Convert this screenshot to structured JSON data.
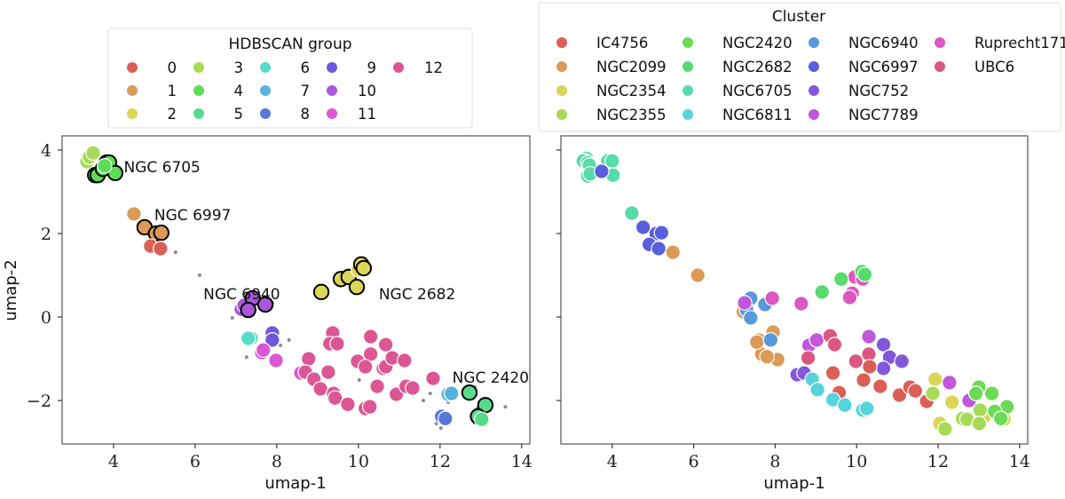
{
  "chart_data": [
    {
      "type": "scatter",
      "title": "",
      "xlabel": "umap-1",
      "ylabel": "umap-2",
      "xlim": [
        2.74,
        14.2
      ],
      "ylim": [
        -3.04,
        4.34
      ],
      "xticks": [
        4,
        6,
        8,
        10,
        12,
        14
      ],
      "yticks": [
        -2,
        0,
        2,
        4
      ],
      "ytick_labels": [
        "−2",
        "0",
        "2",
        "4"
      ],
      "grid": false,
      "legend": {
        "title": "HDBSCAN group",
        "placement": "above",
        "columns": 5,
        "entries": [
          {
            "label": "0",
            "color": "#db5f57"
          },
          {
            "label": "1",
            "color": "#db9a57"
          },
          {
            "label": "2",
            "color": "#dbd657"
          },
          {
            "label": "3",
            "color": "#a7db57"
          },
          {
            "label": "4",
            "color": "#5fdb57"
          },
          {
            "label": "5",
            "color": "#57db8a"
          },
          {
            "label": "6",
            "color": "#57dbc6"
          },
          {
            "label": "7",
            "color": "#57b3db"
          },
          {
            "label": "8",
            "color": "#5777db"
          },
          {
            "label": "9",
            "color": "#6e57db"
          },
          {
            "label": "10",
            "color": "#aa57db"
          },
          {
            "label": "11",
            "color": "#db57d4"
          },
          {
            "label": "12",
            "color": "#db5794"
          }
        ]
      },
      "annotations": [
        {
          "text": "NGC 6705",
          "x": 4.25,
          "y": 3.6
        },
        {
          "text": "NGC 6997",
          "x": 5.0,
          "y": 2.45
        },
        {
          "text": "NGC 6940",
          "x": 6.2,
          "y": 0.55
        },
        {
          "text": "NGC 2682",
          "x": 10.5,
          "y": 0.55
        },
        {
          "text": "NGC 2420",
          "x": 12.3,
          "y": -1.45
        }
      ],
      "noise_points": [
        [
          7.89,
          0.34
        ],
        [
          9.09,
          0.47
        ],
        [
          9.17,
          0.57
        ],
        [
          7.37,
          0.43
        ],
        [
          6.91,
          -0.02
        ],
        [
          7.26,
          -0.96
        ],
        [
          8.09,
          -0.68
        ],
        [
          8.3,
          -0.55
        ],
        [
          10.02,
          -1.51
        ],
        [
          11.59,
          -2.0
        ],
        [
          11.76,
          -1.83
        ],
        [
          12.2,
          -2.04
        ],
        [
          11.91,
          -2.55
        ],
        [
          12.02,
          -2.66
        ],
        [
          12.85,
          -1.68
        ],
        [
          12.91,
          -2.19
        ],
        [
          12.85,
          -2.53
        ],
        [
          13.02,
          -2.36
        ],
        [
          13.22,
          -2.23
        ],
        [
          5.52,
          1.55
        ],
        [
          6.11,
          1.0
        ],
        [
          3.46,
          3.96
        ],
        [
          13.6,
          -2.15
        ]
      ],
      "points": [
        [
          3.35,
          3.72,
          3
        ],
        [
          3.41,
          3.83,
          3
        ],
        [
          3.5,
          3.93,
          3
        ],
        [
          3.55,
          3.4,
          4,
          1
        ],
        [
          3.61,
          3.4,
          4,
          1
        ],
        [
          3.74,
          3.55,
          4,
          1
        ],
        [
          3.83,
          3.7,
          4,
          1
        ],
        [
          3.89,
          3.7,
          4,
          1
        ],
        [
          4.04,
          3.45,
          4,
          1
        ],
        [
          3.78,
          3.62,
          4,
          0
        ],
        [
          4.5,
          2.47,
          1
        ],
        [
          4.76,
          2.15,
          1,
          1
        ],
        [
          5.04,
          2.0,
          1,
          1
        ],
        [
          5.17,
          2.02,
          1,
          1
        ],
        [
          4.91,
          1.7,
          0
        ],
        [
          5.15,
          1.64,
          0
        ],
        [
          7.13,
          0.19,
          10
        ],
        [
          7.2,
          0.28,
          10
        ],
        [
          7.41,
          0.45,
          10,
          1
        ],
        [
          7.3,
          0.17,
          10,
          1
        ],
        [
          7.72,
          0.3,
          10,
          1
        ],
        [
          7.89,
          -0.38,
          9
        ],
        [
          7.89,
          -0.55,
          9
        ],
        [
          7.37,
          -0.51,
          6
        ],
        [
          7.3,
          -0.51,
          6
        ],
        [
          7.63,
          -0.85,
          11
        ],
        [
          7.67,
          -0.79,
          11
        ],
        [
          7.98,
          -1.04,
          11
        ],
        [
          8.59,
          -1.34,
          11
        ],
        [
          9.09,
          0.6,
          2,
          1
        ],
        [
          9.57,
          0.91,
          2,
          1
        ],
        [
          9.76,
          0.96,
          2,
          1
        ],
        [
          10.0,
          1.13,
          2
        ],
        [
          10.07,
          1.26,
          2,
          1
        ],
        [
          10.13,
          1.17,
          2,
          1
        ],
        [
          9.96,
          0.72,
          2,
          1
        ],
        [
          9.37,
          -0.38,
          12
        ],
        [
          9.3,
          -0.64,
          12
        ],
        [
          9.48,
          -0.64,
          12
        ],
        [
          8.78,
          -1.0,
          12
        ],
        [
          8.7,
          -1.32,
          12
        ],
        [
          8.91,
          -1.49,
          12
        ],
        [
          9.26,
          -1.32,
          12
        ],
        [
          9.07,
          -1.72,
          12
        ],
        [
          9.39,
          -1.83,
          12
        ],
        [
          9.43,
          -1.94,
          12
        ],
        [
          9.74,
          -2.09,
          12
        ],
        [
          10.17,
          -2.19,
          12
        ],
        [
          10.28,
          -2.15,
          12
        ],
        [
          10.3,
          -0.47,
          12
        ],
        [
          10.67,
          -0.66,
          12
        ],
        [
          10.3,
          -0.89,
          12
        ],
        [
          9.98,
          -1.06,
          12
        ],
        [
          10.17,
          -1.19,
          12
        ],
        [
          10.61,
          -1.23,
          12
        ],
        [
          10.67,
          -1.19,
          12
        ],
        [
          10.83,
          -0.98,
          12
        ],
        [
          11.13,
          -1.04,
          12
        ],
        [
          10.46,
          -1.66,
          12
        ],
        [
          10.93,
          -1.85,
          12
        ],
        [
          11.17,
          -1.66,
          12
        ],
        [
          11.33,
          -1.7,
          12
        ],
        [
          11.83,
          -1.47,
          12
        ],
        [
          12.2,
          -1.85,
          7
        ],
        [
          12.28,
          -1.83,
          7
        ],
        [
          12.04,
          -2.38,
          8
        ],
        [
          12.13,
          -2.43,
          8
        ],
        [
          12.72,
          -1.81,
          5,
          1
        ],
        [
          13.11,
          -2.11,
          5,
          1
        ],
        [
          12.93,
          -2.38,
          5,
          1
        ],
        [
          13.02,
          -2.45,
          5
        ]
      ]
    },
    {
      "type": "scatter",
      "title": "",
      "xlabel": "umap-1",
      "ylabel": "",
      "xlim": [
        2.74,
        14.2
      ],
      "ylim": [
        -3.04,
        4.34
      ],
      "xticks": [
        4,
        6,
        8,
        10,
        12,
        14
      ],
      "yticks": [
        -2,
        0,
        2,
        4
      ],
      "grid": false,
      "legend": {
        "title": "Cluster",
        "placement": "above",
        "columns": 4,
        "entries": [
          {
            "label": "IC4756",
            "color": "#db5f57"
          },
          {
            "label": "NGC2099",
            "color": "#db9a57"
          },
          {
            "label": "NGC2354",
            "color": "#dbd657"
          },
          {
            "label": "NGC2355",
            "color": "#a7db57"
          },
          {
            "label": "NGC2420",
            "color": "#6bdb57"
          },
          {
            "label": "NGC2682",
            "color": "#57db6e"
          },
          {
            "label": "NGC6705",
            "color": "#57dbaa"
          },
          {
            "label": "NGC6811",
            "color": "#57d4db"
          },
          {
            "label": "NGC6940",
            "color": "#5799db"
          },
          {
            "label": "NGC6997",
            "color": "#575fdb"
          },
          {
            "label": "NGC752",
            "color": "#8357db"
          },
          {
            "label": "NGC7789",
            "color": "#c157db"
          },
          {
            "label": "Ruprecht171",
            "color": "#db57c1"
          },
          {
            "label": "UBC6",
            "color": "#db5783"
          }
        ]
      },
      "points": [
        [
          3.37,
          3.8,
          "NGC6705"
        ],
        [
          3.33,
          3.74,
          "NGC6705"
        ],
        [
          3.29,
          3.74,
          "NGC6705"
        ],
        [
          3.4,
          3.7,
          "NGC6705"
        ],
        [
          3.44,
          3.64,
          "NGC6705"
        ],
        [
          3.89,
          3.74,
          "NGC6705"
        ],
        [
          4.0,
          3.74,
          "NGC6705"
        ],
        [
          3.4,
          3.38,
          "NGC6705"
        ],
        [
          3.46,
          3.43,
          "NGC6705"
        ],
        [
          4.02,
          3.4,
          "NGC6705"
        ],
        [
          3.74,
          3.49,
          "NGC6997"
        ],
        [
          4.48,
          2.49,
          "NGC6705"
        ],
        [
          4.76,
          2.15,
          "NGC6997"
        ],
        [
          5.08,
          2.0,
          "NGC6997"
        ],
        [
          5.21,
          2.02,
          "NGC6997"
        ],
        [
          4.91,
          1.74,
          "NGC6997"
        ],
        [
          5.14,
          1.64,
          "NGC6997"
        ],
        [
          5.49,
          1.55,
          "NGC2099"
        ],
        [
          6.1,
          1.0,
          "NGC2099"
        ],
        [
          7.22,
          0.13,
          "NGC2099"
        ],
        [
          7.6,
          -0.55,
          "NGC2099"
        ],
        [
          7.95,
          -0.36,
          "NGC2099"
        ],
        [
          7.67,
          -0.89,
          "NGC2099"
        ],
        [
          8.06,
          -1.02,
          "NGC2099"
        ],
        [
          7.55,
          -0.6,
          "NGC2099"
        ],
        [
          7.8,
          -0.95,
          "NGC2099"
        ],
        [
          7.4,
          0.45,
          "NGC6940"
        ],
        [
          7.75,
          0.3,
          "NGC6940"
        ],
        [
          7.3,
          0.17,
          "NGC6940"
        ],
        [
          7.4,
          -0.02,
          "NGC6940"
        ],
        [
          7.89,
          -0.55,
          "NGC6940"
        ],
        [
          7.25,
          0.34,
          "NGC7789"
        ],
        [
          7.93,
          0.45,
          "Ruprecht171"
        ],
        [
          8.64,
          0.32,
          "Ruprecht171"
        ],
        [
          9.96,
          0.96,
          "Ruprecht171"
        ],
        [
          10.15,
          0.91,
          "Ruprecht171"
        ],
        [
          9.89,
          0.57,
          "Ruprecht171"
        ],
        [
          9.83,
          0.47,
          "Ruprecht171"
        ],
        [
          9.15,
          0.6,
          "NGC2682"
        ],
        [
          9.62,
          0.91,
          "NGC2682"
        ],
        [
          10.13,
          1.09,
          "NGC2682"
        ],
        [
          10.2,
          1.02,
          "NGC2682"
        ],
        [
          8.83,
          -0.68,
          "NGC7789"
        ],
        [
          9.02,
          -0.55,
          "NGC7789"
        ],
        [
          10.3,
          -0.47,
          "NGC7789"
        ],
        [
          12.28,
          -1.57,
          "NGC7789"
        ],
        [
          12.76,
          -2.0,
          "NGC7789"
        ],
        [
          9.35,
          -0.45,
          "UBC6"
        ],
        [
          9.46,
          -0.66,
          "UBC6"
        ],
        [
          8.81,
          -0.98,
          "UBC6"
        ],
        [
          10.3,
          -0.91,
          "UBC6"
        ],
        [
          9.98,
          -1.06,
          "UBC6"
        ],
        [
          9.98,
          -1.06,
          "UBC6"
        ],
        [
          10.3,
          -0.89,
          "UBC6"
        ],
        [
          10.66,
          -0.66,
          "NGC752"
        ],
        [
          10.81,
          -0.96,
          "NGC752"
        ],
        [
          11.11,
          -1.06,
          "NGC752"
        ],
        [
          10.66,
          -1.23,
          "NGC752"
        ],
        [
          8.54,
          -1.38,
          "NGC752"
        ],
        [
          8.71,
          -1.34,
          "NGC752"
        ],
        [
          9.42,
          -1.34,
          "IC4756"
        ],
        [
          9.57,
          -1.81,
          "IC4756"
        ],
        [
          10.17,
          -1.51,
          "IC4756"
        ],
        [
          10.58,
          -1.66,
          "IC4756"
        ],
        [
          11.05,
          -1.87,
          "IC4756"
        ],
        [
          11.31,
          -1.68,
          "IC4756"
        ],
        [
          11.44,
          -1.77,
          "IC4756"
        ],
        [
          11.72,
          -2.02,
          "IC4756"
        ],
        [
          10.32,
          -1.19,
          "IC4756"
        ],
        [
          8.91,
          -1.49,
          "NGC6811"
        ],
        [
          9.04,
          -1.74,
          "NGC6811"
        ],
        [
          9.42,
          -1.98,
          "NGC6811"
        ],
        [
          9.71,
          -2.11,
          "NGC6811"
        ],
        [
          10.15,
          -2.23,
          "NGC6811"
        ],
        [
          10.25,
          -2.19,
          "NGC6811"
        ],
        [
          11.93,
          -1.49,
          "NGC2354"
        ],
        [
          12.34,
          -2.04,
          "NGC2354"
        ],
        [
          12.04,
          -2.55,
          "NGC2354"
        ],
        [
          13.12,
          -2.4,
          "NGC2354"
        ],
        [
          13.62,
          -2.45,
          "NGC2354"
        ],
        [
          11.87,
          -1.83,
          "NGC2355"
        ],
        [
          12.17,
          -2.68,
          "NGC2355"
        ],
        [
          12.6,
          -2.43,
          "NGC2355"
        ],
        [
          12.71,
          -2.45,
          "NGC2355"
        ],
        [
          13.03,
          -2.23,
          "NGC2355"
        ],
        [
          13.01,
          -2.55,
          "NGC2355"
        ],
        [
          13.0,
          -1.68,
          "NGC2420"
        ],
        [
          13.32,
          -1.83,
          "NGC2420"
        ],
        [
          13.69,
          -2.15,
          "NGC2420"
        ],
        [
          13.39,
          -2.26,
          "NGC2420"
        ],
        [
          13.54,
          -2.43,
          "NGC2420"
        ],
        [
          12.93,
          -1.83,
          "NGC2420"
        ]
      ]
    }
  ]
}
